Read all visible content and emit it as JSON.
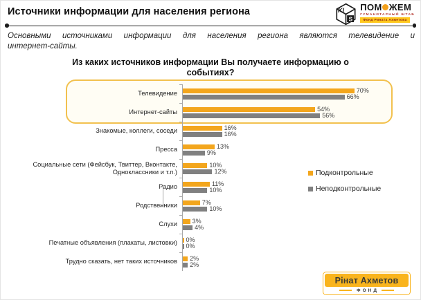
{
  "header": {
    "title": "Источники информации для населения региона"
  },
  "logo_top": {
    "cube_left": "KI",
    "cube_right": "S",
    "brand_part1": "ПОМ",
    "brand_part2": "ЖЕМ",
    "subtitle": "ГУМАНИТАРНЫЙ ШТАБ",
    "banner": "Фонд Рината Ахметова"
  },
  "intro_text": "Основными источниками информации для населения региона являются телевидение и интернет-сайты.",
  "intro_lines": [
    "Основными источниками информации для населения региона являются телевидение и",
    "интернет-сайты."
  ],
  "chart_data": {
    "type": "bar",
    "orientation": "horizontal",
    "title": "Из каких источников информации Вы получаете информацию о событиях?",
    "title_lines": [
      "Из каких источников информации Вы получаете информацию о",
      "событиях?"
    ],
    "categories": [
      "Телевидение",
      "Интернет-сайты",
      "Знакомые, коллеги, соседи",
      "Пресса",
      "Социальные сети (Фейсбук, Твиттер, Вконтакте, Одноклассники  и т.п.)",
      "Радио",
      "Родственники",
      "Слухи",
      "Печатные объявления (плакаты, листовки)",
      "Трудно сказать, нет таких источников"
    ],
    "series": [
      {
        "name": "Подконтрольные",
        "color": "#F3A61D",
        "values": [
          70,
          54,
          16,
          13,
          10,
          11,
          7,
          3,
          0,
          2
        ]
      },
      {
        "name": "Неподконтрольные",
        "color": "#808080",
        "values": [
          66,
          56,
          16,
          9,
          12,
          10,
          10,
          4,
          0,
          2
        ]
      }
    ],
    "value_suffix": "%",
    "xlim": [
      0,
      75
    ],
    "grid": false,
    "legend_position": "right",
    "highlighted_categories": [
      "Телевидение",
      "Интернет-сайты"
    ],
    "highlight_border_color": "#F2C14E"
  },
  "footer_logo": {
    "name": "Рінат Ахметов",
    "sub": "ФОНД"
  }
}
